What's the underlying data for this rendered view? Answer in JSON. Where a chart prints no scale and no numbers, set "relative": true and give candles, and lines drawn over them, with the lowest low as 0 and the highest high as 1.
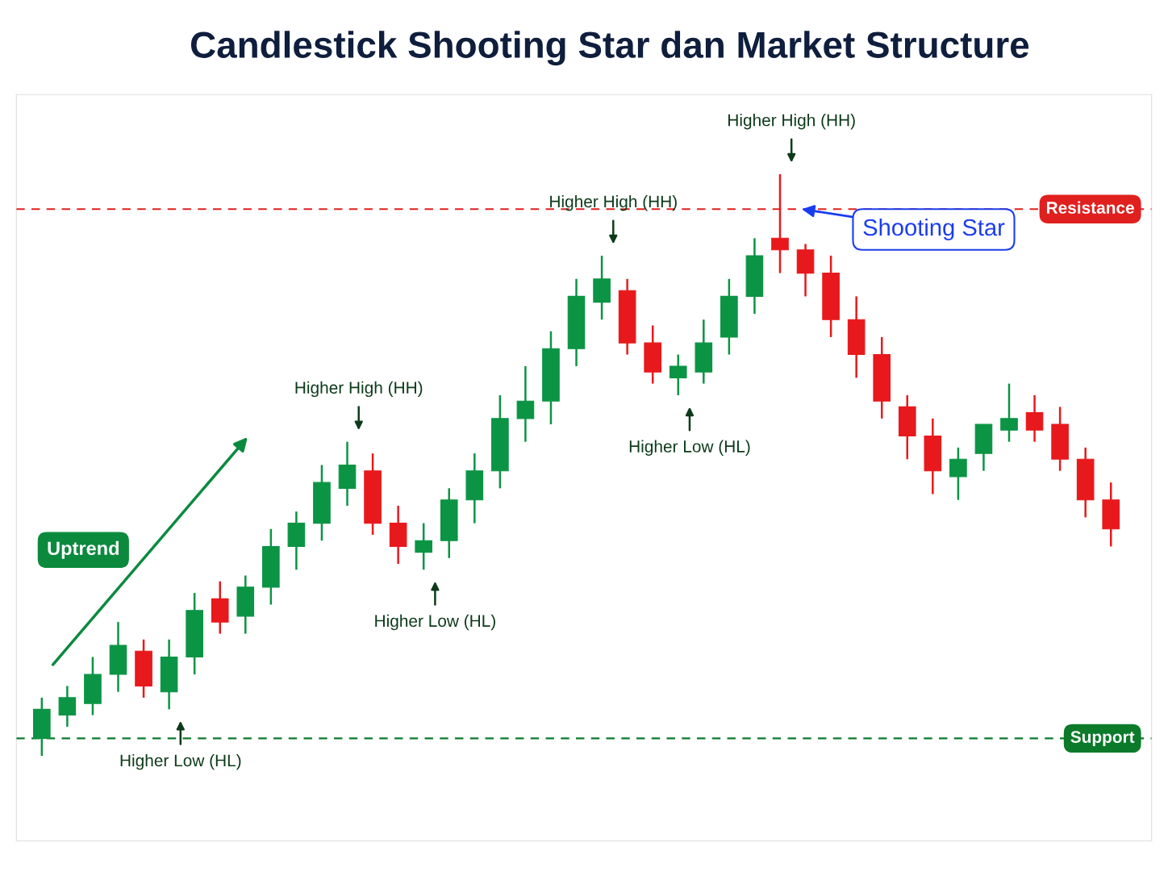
{
  "chart_data": {
    "type": "candlestick",
    "title": "Candlestick Shooting Star dan Market Structure",
    "relative": true,
    "categories": [
      null,
      null,
      null,
      null,
      null,
      null,
      null,
      null,
      null,
      null,
      null,
      null,
      null,
      null,
      null,
      null,
      null,
      null,
      null,
      null,
      null,
      null,
      null,
      null,
      null,
      null,
      null,
      null,
      null,
      null,
      null,
      null,
      null,
      null,
      null,
      null,
      null,
      null,
      null,
      null,
      null,
      null,
      null
    ],
    "ohlc": [
      [
        0.03,
        0.1,
        0,
        0.08
      ],
      [
        0.07,
        0.12,
        0.05,
        0.1
      ],
      [
        0.09,
        0.17,
        0.07,
        0.14
      ],
      [
        0.14,
        0.23,
        0.11,
        0.19
      ],
      [
        0.18,
        0.2,
        0.1,
        0.12
      ],
      [
        0.11,
        0.2,
        0.08,
        0.17
      ],
      [
        0.17,
        0.28,
        0.14,
        0.25
      ],
      [
        0.27,
        0.3,
        0.21,
        0.23
      ],
      [
        0.24,
        0.31,
        0.21,
        0.29
      ],
      [
        0.29,
        0.39,
        0.26,
        0.36
      ],
      [
        0.36,
        0.42,
        0.32,
        0.4
      ],
      [
        0.4,
        0.5,
        0.37,
        0.47
      ],
      [
        0.46,
        0.54,
        0.43,
        0.5
      ],
      [
        0.49,
        0.52,
        0.38,
        0.4
      ],
      [
        0.4,
        0.43,
        0.33,
        0.36
      ],
      [
        0.35,
        0.4,
        0.32,
        0.37
      ],
      [
        0.37,
        0.46,
        0.34,
        0.44
      ],
      [
        0.44,
        0.52,
        0.4,
        0.49
      ],
      [
        0.49,
        0.62,
        0.46,
        0.58
      ],
      [
        0.58,
        0.67,
        0.54,
        0.61
      ],
      [
        0.61,
        0.73,
        0.57,
        0.7
      ],
      [
        0.7,
        0.82,
        0.67,
        0.79
      ],
      [
        0.78,
        0.86,
        0.75,
        0.82
      ],
      [
        0.8,
        0.82,
        0.69,
        0.71
      ],
      [
        0.71,
        0.74,
        0.64,
        0.66
      ],
      [
        0.65,
        0.69,
        0.62,
        0.67
      ],
      [
        0.66,
        0.75,
        0.64,
        0.71
      ],
      [
        0.72,
        0.82,
        0.69,
        0.79
      ],
      [
        0.79,
        0.89,
        0.76,
        0.86
      ],
      [
        0.89,
        1,
        0.83,
        0.87
      ],
      [
        0.87,
        0.88,
        0.79,
        0.83
      ],
      [
        0.83,
        0.86,
        0.72,
        0.75
      ],
      [
        0.75,
        0.79,
        0.65,
        0.69
      ],
      [
        0.69,
        0.72,
        0.58,
        0.61
      ],
      [
        0.6,
        0.62,
        0.51,
        0.55
      ],
      [
        0.55,
        0.58,
        0.45,
        0.49
      ],
      [
        0.48,
        0.53,
        0.44,
        0.51
      ],
      [
        0.52,
        0.57,
        0.49,
        0.57
      ],
      [
        0.56,
        0.64,
        0.54,
        0.58
      ],
      [
        0.59,
        0.62,
        0.54,
        0.56
      ],
      [
        0.57,
        0.6,
        0.49,
        0.51
      ],
      [
        0.51,
        0.53,
        0.41,
        0.44
      ],
      [
        0.44,
        0.47,
        0.36,
        0.39
      ]
    ],
    "colors": [
      "#0b9444",
      "#0b9444",
      "#0b9444",
      "#0b9444",
      "#e8191c",
      "#0b9444",
      "#0b9444",
      "#e8191c",
      "#0b9444",
      "#0b9444",
      "#0b9444",
      "#0b9444",
      "#0b9444",
      "#e8191c",
      "#e8191c",
      "#0b9444",
      "#0b9444",
      "#0b9444",
      "#0b9444",
      "#0b9444",
      "#0b9444",
      "#0b9444",
      "#0b9444",
      "#e8191c",
      "#e8191c",
      "#0b9444",
      "#0b9444",
      "#0b9444",
      "#0b9444",
      "#e8191c",
      "#e8191c",
      "#e8191c",
      "#e8191c",
      "#e8191c",
      "#e8191c",
      "#e8191c",
      "#0b9444",
      "#0b9444",
      "#0b9444",
      "#e8191c",
      "#e8191c",
      "#e8191c",
      "#e8191c"
    ],
    "ref_lines": [
      {
        "axis": "y",
        "value": 0.94,
        "label": "Resistance",
        "color": "#e0201e",
        "line_style": "dashed"
      },
      {
        "axis": "y",
        "value": 0.03,
        "label": "Support",
        "color": "#0b7a2a",
        "line_style": "dashed"
      }
    ],
    "annotations": [
      "Higher High (HH)",
      "Higher High (HH)",
      "Higher High (HH)",
      "Higher Low (HL)",
      "Higher Low (HL)",
      "Higher Low (HL)",
      "Shooting Star",
      "Uptrend"
    ]
  }
}
